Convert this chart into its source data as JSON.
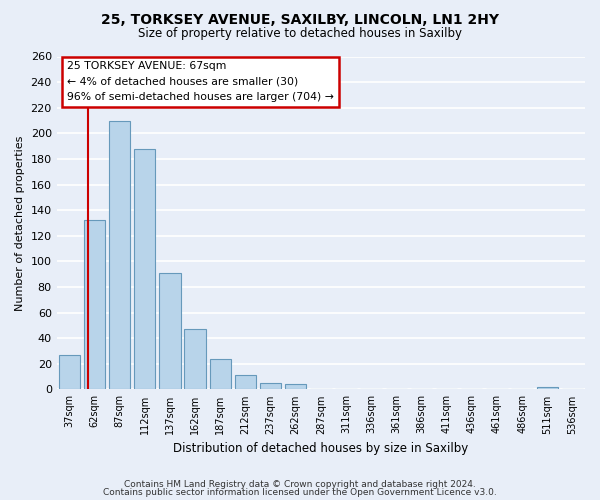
{
  "title1": "25, TORKSEY AVENUE, SAXILBY, LINCOLN, LN1 2HY",
  "title2": "Size of property relative to detached houses in Saxilby",
  "xlabel": "Distribution of detached houses by size in Saxilby",
  "ylabel": "Number of detached properties",
  "bar_labels": [
    "37sqm",
    "62sqm",
    "87sqm",
    "112sqm",
    "137sqm",
    "162sqm",
    "187sqm",
    "212sqm",
    "237sqm",
    "262sqm",
    "287sqm",
    "311sqm",
    "336sqm",
    "361sqm",
    "386sqm",
    "411sqm",
    "436sqm",
    "461sqm",
    "486sqm",
    "511sqm",
    "536sqm"
  ],
  "bar_values": [
    27,
    132,
    210,
    188,
    91,
    47,
    24,
    11,
    5,
    4,
    0,
    0,
    0,
    0,
    0,
    0,
    0,
    0,
    0,
    2,
    0
  ],
  "bar_color": "#b8d4ea",
  "bar_edge_color": "#6699bb",
  "annotation_text_line1": "25 TORKSEY AVENUE: 67sqm",
  "annotation_text_line2": "← 4% of detached houses are smaller (30)",
  "annotation_text_line3": "96% of semi-detached houses are larger (704) →",
  "annotation_box_color": "#ffffff",
  "annotation_box_edge": "#cc0000",
  "red_line_color": "#cc0000",
  "ylim": [
    0,
    260
  ],
  "yticks": [
    0,
    20,
    40,
    60,
    80,
    100,
    120,
    140,
    160,
    180,
    200,
    220,
    240,
    260
  ],
  "footer1": "Contains HM Land Registry data © Crown copyright and database right 2024.",
  "footer2": "Contains public sector information licensed under the Open Government Licence v3.0.",
  "bg_color": "#e8eef8",
  "plot_bg_color": "#e8eef8",
  "grid_color": "#ffffff"
}
